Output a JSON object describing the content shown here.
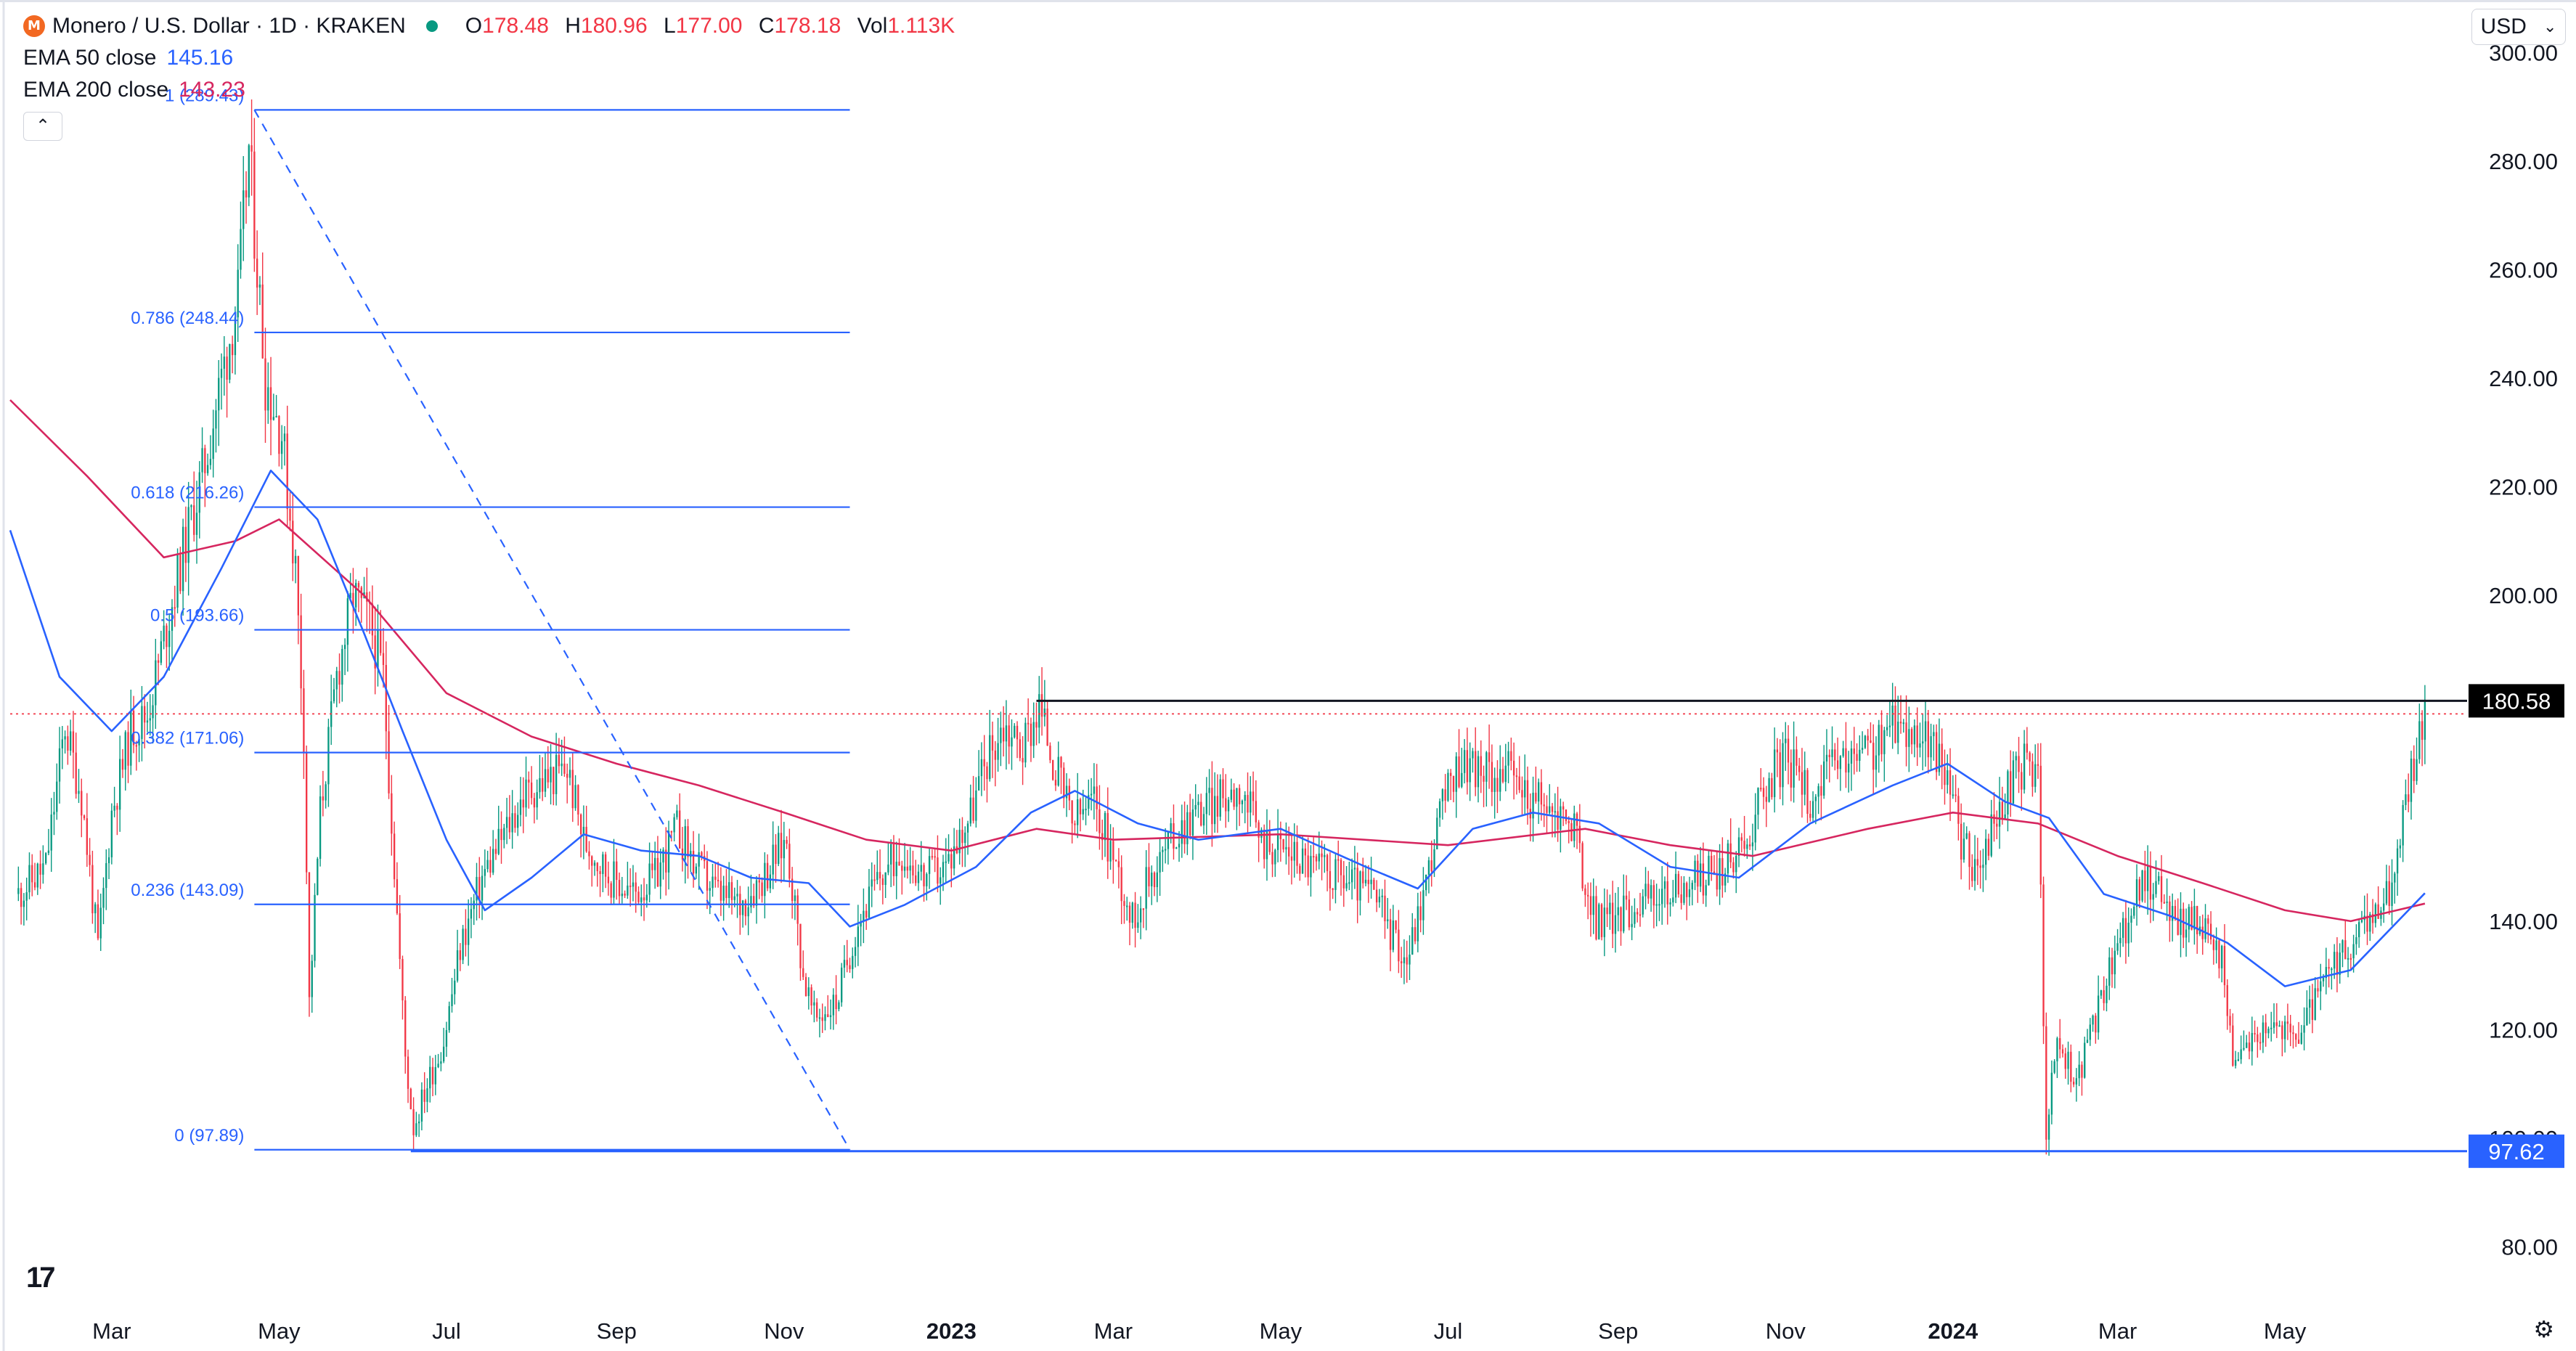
{
  "header": {
    "symbol_title": "Monero / U.S. Dollar · 1D · KRAKEN",
    "coin_icon": "monero-icon",
    "market_status_icon": "market-open-dot-icon",
    "ohlc": {
      "o_label": "O",
      "o_value": "178.48",
      "h_label": "H",
      "h_value": "180.96",
      "l_label": "L",
      "l_value": "177.00",
      "c_label": "C",
      "c_value": "178.18",
      "vol_label": "Vol",
      "vol_value": "1.113K"
    },
    "ema50": {
      "label": "EMA 50 close",
      "value": "145.16",
      "color": "#2962ff"
    },
    "ema200": {
      "label": "EMA 200 close",
      "value": "143.23",
      "color": "#d6265f"
    },
    "collapse_icon": "chevron-up-icon"
  },
  "currency_selector": {
    "value": "USD",
    "icon": "chevron-down-icon"
  },
  "footer": {
    "logo": "tradingview-logo-icon",
    "logo_text": "17",
    "settings_icon": "gear-icon"
  },
  "colors": {
    "up": "#089981",
    "down": "#f23645",
    "fib": "#2962ff",
    "ema50": "#2962ff",
    "ema200": "#d6265f",
    "resistance": "#131722",
    "price_line": "#f23645"
  },
  "chart_data": {
    "type": "candlestick",
    "x_ticks": [
      {
        "label": "Mar",
        "date": "2022-03-01",
        "bold": false
      },
      {
        "label": "May",
        "date": "2022-05-01",
        "bold": false
      },
      {
        "label": "Jul",
        "date": "2022-07-01",
        "bold": false
      },
      {
        "label": "Sep",
        "date": "2022-09-01",
        "bold": false
      },
      {
        "label": "Nov",
        "date": "2022-11-01",
        "bold": false
      },
      {
        "label": "2023",
        "date": "2023-01-01",
        "bold": true
      },
      {
        "label": "Mar",
        "date": "2023-03-01",
        "bold": false
      },
      {
        "label": "May",
        "date": "2023-05-01",
        "bold": false
      },
      {
        "label": "Jul",
        "date": "2023-07-01",
        "bold": false
      },
      {
        "label": "Sep",
        "date": "2023-09-01",
        "bold": false
      },
      {
        "label": "Nov",
        "date": "2023-11-01",
        "bold": false
      },
      {
        "label": "2024",
        "date": "2024-01-01",
        "bold": true
      },
      {
        "label": "Mar",
        "date": "2024-03-01",
        "bold": false
      },
      {
        "label": "May",
        "date": "2024-05-01",
        "bold": false
      }
    ],
    "x_range": [
      "2022-01-23",
      "2024-06-25"
    ],
    "y_range": [
      77,
      307
    ],
    "y_ticks": [
      "300.00",
      "280.00",
      "260.00",
      "240.00",
      "220.00",
      "200.00",
      "140.00",
      "120.00",
      "100.00",
      "80.00"
    ],
    "grid": false,
    "close_path": [
      [
        "2022-01-26",
        145
      ],
      [
        "2022-02-05",
        150
      ],
      [
        "2022-02-12",
        176
      ],
      [
        "2022-02-18",
        163
      ],
      [
        "2022-02-24",
        135
      ],
      [
        "2022-03-01",
        160
      ],
      [
        "2022-03-08",
        175
      ],
      [
        "2022-03-14",
        178
      ],
      [
        "2022-03-20",
        192
      ],
      [
        "2022-03-28",
        210
      ],
      [
        "2022-04-03",
        222
      ],
      [
        "2022-04-10",
        240
      ],
      [
        "2022-04-16",
        255
      ],
      [
        "2022-04-20",
        282
      ],
      [
        "2022-04-22",
        268
      ],
      [
        "2022-04-26",
        240
      ],
      [
        "2022-05-02",
        230
      ],
      [
        "2022-05-07",
        205
      ],
      [
        "2022-05-10",
        175
      ],
      [
        "2022-05-12",
        125
      ],
      [
        "2022-05-16",
        160
      ],
      [
        "2022-05-22",
        185
      ],
      [
        "2022-05-28",
        200
      ],
      [
        "2022-06-03",
        195
      ],
      [
        "2022-06-08",
        185
      ],
      [
        "2022-06-12",
        150
      ],
      [
        "2022-06-16",
        115
      ],
      [
        "2022-06-19",
        102
      ],
      [
        "2022-06-24",
        110
      ],
      [
        "2022-06-30",
        118
      ],
      [
        "2022-07-06",
        135
      ],
      [
        "2022-07-14",
        148
      ],
      [
        "2022-07-22",
        156
      ],
      [
        "2022-07-29",
        163
      ],
      [
        "2022-08-06",
        166
      ],
      [
        "2022-08-14",
        168
      ],
      [
        "2022-08-20",
        155
      ],
      [
        "2022-08-30",
        148
      ],
      [
        "2022-09-07",
        145
      ],
      [
        "2022-09-15",
        148
      ],
      [
        "2022-09-23",
        157
      ],
      [
        "2022-09-30",
        150
      ],
      [
        "2022-10-08",
        145
      ],
      [
        "2022-10-16",
        143
      ],
      [
        "2022-10-24",
        148
      ],
      [
        "2022-11-02",
        155
      ],
      [
        "2022-11-08",
        130
      ],
      [
        "2022-11-12",
        122
      ],
      [
        "2022-11-20",
        125
      ],
      [
        "2022-11-28",
        140
      ],
      [
        "2022-12-06",
        148
      ],
      [
        "2022-12-14",
        153
      ],
      [
        "2022-12-22",
        148
      ],
      [
        "2022-12-30",
        150
      ],
      [
        "2023-01-08",
        160
      ],
      [
        "2023-01-14",
        170
      ],
      [
        "2023-01-20",
        176
      ],
      [
        "2023-01-27",
        172
      ],
      [
        "2023-02-02",
        180
      ],
      [
        "2023-02-08",
        168
      ],
      [
        "2023-02-14",
        158
      ],
      [
        "2023-02-22",
        162
      ],
      [
        "2023-03-01",
        152
      ],
      [
        "2023-03-08",
        140
      ],
      [
        "2023-03-14",
        148
      ],
      [
        "2023-03-22",
        155
      ],
      [
        "2023-03-30",
        160
      ],
      [
        "2023-04-08",
        162
      ],
      [
        "2023-04-16",
        165
      ],
      [
        "2023-04-24",
        155
      ],
      [
        "2023-05-04",
        153
      ],
      [
        "2023-05-14",
        150
      ],
      [
        "2023-05-24",
        148
      ],
      [
        "2023-06-04",
        145
      ],
      [
        "2023-06-10",
        138
      ],
      [
        "2023-06-16",
        133
      ],
      [
        "2023-06-22",
        145
      ],
      [
        "2023-06-28",
        160
      ],
      [
        "2023-07-06",
        170
      ],
      [
        "2023-07-14",
        167
      ],
      [
        "2023-07-22",
        168
      ],
      [
        "2023-07-30",
        163
      ],
      [
        "2023-08-08",
        160
      ],
      [
        "2023-08-16",
        158
      ],
      [
        "2023-08-19",
        148
      ],
      [
        "2023-08-24",
        140
      ],
      [
        "2023-09-01",
        141
      ],
      [
        "2023-09-10",
        144
      ],
      [
        "2023-09-20",
        145
      ],
      [
        "2023-10-01",
        148
      ],
      [
        "2023-10-10",
        150
      ],
      [
        "2023-10-18",
        155
      ],
      [
        "2023-10-24",
        165
      ],
      [
        "2023-11-01",
        170
      ],
      [
        "2023-11-10",
        163
      ],
      [
        "2023-11-18",
        168
      ],
      [
        "2023-11-26",
        170
      ],
      [
        "2023-12-04",
        172
      ],
      [
        "2023-12-12",
        177
      ],
      [
        "2023-12-20",
        174
      ],
      [
        "2023-12-28",
        170
      ],
      [
        "2024-01-04",
        155
      ],
      [
        "2024-01-10",
        148
      ],
      [
        "2024-01-16",
        158
      ],
      [
        "2024-01-22",
        165
      ],
      [
        "2024-01-28",
        170
      ],
      [
        "2024-02-01",
        166
      ],
      [
        "2024-02-04",
        102
      ],
      [
        "2024-02-08",
        118
      ],
      [
        "2024-02-15",
        110
      ],
      [
        "2024-02-22",
        122
      ],
      [
        "2024-03-01",
        135
      ],
      [
        "2024-03-08",
        145
      ],
      [
        "2024-03-14",
        148
      ],
      [
        "2024-03-22",
        140
      ],
      [
        "2024-03-30",
        140
      ],
      [
        "2024-04-08",
        133
      ],
      [
        "2024-04-13",
        112
      ],
      [
        "2024-04-18",
        118
      ],
      [
        "2024-04-26",
        122
      ],
      [
        "2024-05-04",
        118
      ],
      [
        "2024-05-12",
        125
      ],
      [
        "2024-05-20",
        132
      ],
      [
        "2024-05-28",
        137
      ],
      [
        "2024-06-04",
        142
      ],
      [
        "2024-06-10",
        148
      ],
      [
        "2024-06-14",
        162
      ],
      [
        "2024-06-18",
        172
      ],
      [
        "2024-06-21",
        178.18
      ]
    ],
    "ema50": [
      [
        "2022-01-23",
        212
      ],
      [
        "2022-02-10",
        185
      ],
      [
        "2022-03-01",
        175
      ],
      [
        "2022-03-20",
        185
      ],
      [
        "2022-04-10",
        205
      ],
      [
        "2022-04-28",
        223
      ],
      [
        "2022-05-15",
        214
      ],
      [
        "2022-06-01",
        193
      ],
      [
        "2022-06-15",
        175
      ],
      [
        "2022-07-01",
        155
      ],
      [
        "2022-07-15",
        142
      ],
      [
        "2022-08-01",
        148
      ],
      [
        "2022-08-20",
        156
      ],
      [
        "2022-09-10",
        153
      ],
      [
        "2022-10-01",
        152
      ],
      [
        "2022-10-20",
        148
      ],
      [
        "2022-11-10",
        147
      ],
      [
        "2022-11-25",
        139
      ],
      [
        "2022-12-15",
        143
      ],
      [
        "2023-01-10",
        150
      ],
      [
        "2023-01-30",
        160
      ],
      [
        "2023-02-15",
        164
      ],
      [
        "2023-03-10",
        158
      ],
      [
        "2023-04-01",
        155
      ],
      [
        "2023-05-01",
        157
      ],
      [
        "2023-06-01",
        150
      ],
      [
        "2023-06-20",
        146
      ],
      [
        "2023-07-10",
        157
      ],
      [
        "2023-08-01",
        160
      ],
      [
        "2023-08-25",
        158
      ],
      [
        "2023-09-20",
        150
      ],
      [
        "2023-10-15",
        148
      ],
      [
        "2023-11-10",
        158
      ],
      [
        "2023-12-10",
        165
      ],
      [
        "2023-12-30",
        169
      ],
      [
        "2024-01-20",
        162
      ],
      [
        "2024-02-05",
        159
      ],
      [
        "2024-02-25",
        145
      ],
      [
        "2024-03-20",
        141
      ],
      [
        "2024-04-10",
        136
      ],
      [
        "2024-05-01",
        128
      ],
      [
        "2024-05-25",
        131
      ],
      [
        "2024-06-21",
        145.16
      ]
    ],
    "ema200": [
      [
        "2022-01-23",
        236
      ],
      [
        "2022-02-20",
        222
      ],
      [
        "2022-03-20",
        207
      ],
      [
        "2022-04-15",
        210
      ],
      [
        "2022-05-01",
        214
      ],
      [
        "2022-06-01",
        200
      ],
      [
        "2022-07-01",
        182
      ],
      [
        "2022-08-01",
        174
      ],
      [
        "2022-09-01",
        169
      ],
      [
        "2022-10-01",
        165
      ],
      [
        "2022-11-01",
        160
      ],
      [
        "2022-12-01",
        155
      ],
      [
        "2023-01-01",
        153
      ],
      [
        "2023-02-01",
        157
      ],
      [
        "2023-03-01",
        155
      ],
      [
        "2023-05-01",
        156
      ],
      [
        "2023-07-01",
        154
      ],
      [
        "2023-08-20",
        157
      ],
      [
        "2023-09-20",
        154
      ],
      [
        "2023-10-20",
        152
      ],
      [
        "2023-12-01",
        157
      ],
      [
        "2024-01-01",
        160
      ],
      [
        "2024-02-01",
        158
      ],
      [
        "2024-03-01",
        152
      ],
      [
        "2024-04-01",
        147
      ],
      [
        "2024-05-01",
        142
      ],
      [
        "2024-05-25",
        140
      ],
      [
        "2024-06-21",
        143.23
      ]
    ],
    "fibonacci": {
      "range": [
        "2022-04-22",
        "2022-11-25"
      ],
      "levels": [
        {
          "label": "1 (289.43)",
          "value": 289.43
        },
        {
          "label": "0.786 (248.44)",
          "value": 248.44
        },
        {
          "label": "0.618 (216.26)",
          "value": 216.26
        },
        {
          "label": "0.5 (193.66)",
          "value": 193.66
        },
        {
          "label": "0.382 (171.06)",
          "value": 171.06
        },
        {
          "label": "0.236 (143.09)",
          "value": 143.09
        },
        {
          "label": "0 (97.89)",
          "value": 97.89
        }
      ],
      "trend_from": [
        "2022-04-22",
        289.43
      ],
      "trend_to": [
        "2022-11-25",
        97.89
      ]
    },
    "support": {
      "from": "2022-06-18",
      "value": 97.62,
      "label": "97.62"
    },
    "resistance": {
      "from": "2023-02-01",
      "value": 180.58,
      "label": "180.58"
    },
    "last_price": 178.18
  }
}
